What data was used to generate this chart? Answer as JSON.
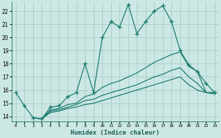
{
  "xlabel": "Humidex (Indice chaleur)",
  "ylabel": "",
  "bg_color": "#cce8e4",
  "grid_color": "#aacfcb",
  "line_color": "#1a7a6e",
  "xlim": [
    -0.5,
    23.5
  ],
  "ylim": [
    13.6,
    22.7
  ],
  "xticks": [
    0,
    1,
    2,
    3,
    4,
    5,
    6,
    7,
    8,
    9,
    10,
    11,
    12,
    13,
    14,
    15,
    16,
    17,
    18,
    19,
    20,
    21,
    22,
    23
  ],
  "yticks": [
    14,
    15,
    16,
    17,
    18,
    19,
    20,
    21,
    22
  ],
  "line1_x": [
    0,
    1,
    2,
    3,
    4,
    5,
    6,
    7,
    8,
    9,
    10,
    11,
    12,
    13,
    14,
    15,
    16,
    17,
    18,
    19,
    20,
    21,
    22,
    23
  ],
  "line1_y": [
    15.8,
    14.8,
    13.9,
    13.8,
    14.7,
    14.8,
    15.5,
    15.8,
    18.0,
    15.8,
    20.0,
    21.2,
    20.8,
    22.5,
    20.3,
    21.2,
    22.0,
    22.4,
    21.2,
    19.0,
    17.9,
    17.4,
    16.5,
    15.8
  ],
  "line2_x": [
    2,
    3,
    4,
    5,
    6,
    7,
    8,
    9,
    10,
    11,
    12,
    13,
    14,
    15,
    16,
    17,
    18,
    19,
    20,
    21,
    22,
    23
  ],
  "line2_y": [
    13.9,
    13.8,
    14.5,
    14.6,
    14.9,
    15.0,
    15.5,
    15.7,
    16.2,
    16.5,
    16.7,
    17.0,
    17.3,
    17.7,
    18.1,
    18.4,
    18.7,
    18.9,
    17.8,
    17.4,
    15.8,
    15.8
  ],
  "line3_x": [
    2,
    3,
    4,
    5,
    6,
    7,
    8,
    9,
    10,
    11,
    12,
    13,
    14,
    15,
    16,
    17,
    18,
    19,
    20,
    21,
    22,
    23
  ],
  "line3_y": [
    13.9,
    13.8,
    14.4,
    14.5,
    14.7,
    14.9,
    15.2,
    15.3,
    15.6,
    15.8,
    16.0,
    16.2,
    16.4,
    16.7,
    17.0,
    17.2,
    17.5,
    17.7,
    17.0,
    16.5,
    15.8,
    15.8
  ],
  "line4_x": [
    2,
    3,
    4,
    5,
    6,
    7,
    8,
    9,
    10,
    11,
    12,
    13,
    14,
    15,
    16,
    17,
    18,
    19,
    20,
    21,
    22,
    23
  ],
  "line4_y": [
    13.9,
    13.8,
    14.3,
    14.4,
    14.6,
    14.7,
    14.9,
    15.0,
    15.2,
    15.4,
    15.6,
    15.8,
    16.0,
    16.2,
    16.4,
    16.6,
    16.8,
    17.0,
    16.4,
    16.0,
    15.8,
    15.7
  ]
}
